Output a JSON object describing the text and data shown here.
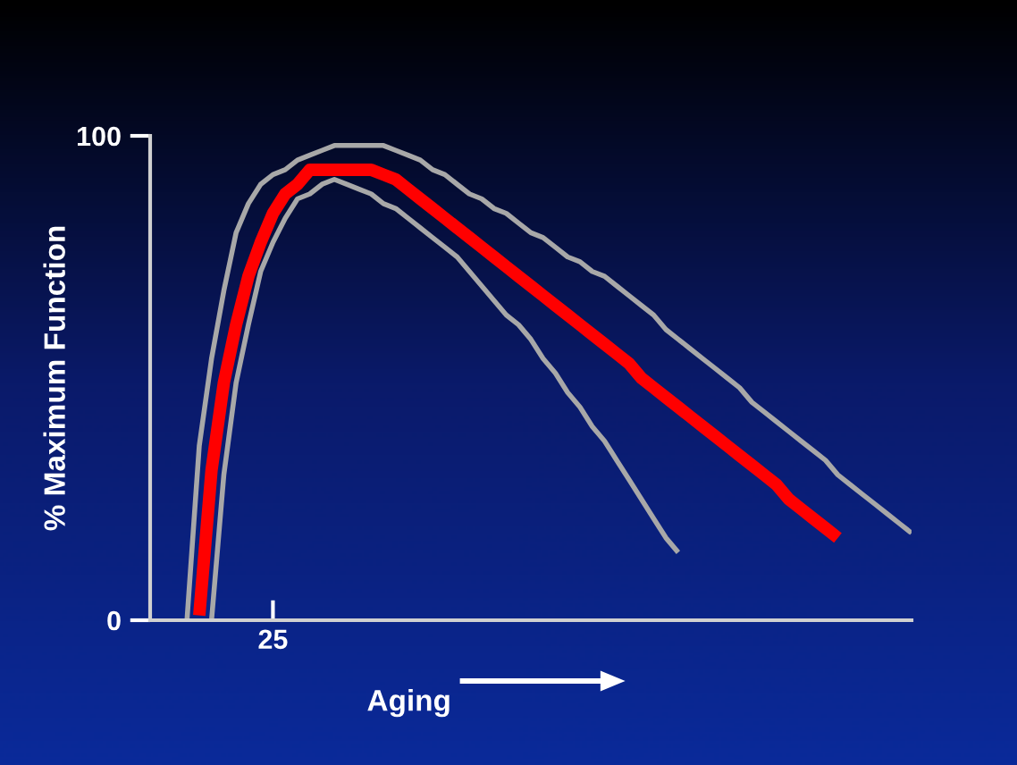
{
  "chart_data": {
    "type": "line",
    "xlabel": "Aging",
    "ylabel": "% Maximum Function",
    "ylim": [
      0,
      100
    ],
    "yticks": [
      0,
      100
    ],
    "grid": false,
    "legend": false,
    "marker": "none",
    "line_style": "solid",
    "categories": [
      null,
      null,
      null,
      null,
      null,
      null,
      null,
      null,
      null,
      null,
      "25",
      null,
      null,
      null,
      null,
      null,
      null,
      null,
      null,
      null,
      null,
      null,
      null,
      null,
      null,
      null,
      null,
      null,
      null,
      null,
      null,
      null,
      null,
      null,
      null,
      null,
      null,
      null,
      null,
      null,
      null,
      null,
      null,
      null,
      null,
      null,
      null,
      null,
      null,
      null,
      null,
      null,
      null,
      null,
      null,
      null,
      null,
      null,
      null,
      null,
      null,
      null,
      null
    ],
    "series": [
      {
        "color": "#a8a8a8",
        "values": [
          null,
          null,
          null,
          0,
          36,
          54,
          68,
          80,
          86,
          90,
          92,
          93,
          95,
          96,
          97,
          98,
          98,
          98,
          98,
          98,
          97,
          96,
          95,
          93,
          92,
          90,
          88,
          87,
          85,
          84,
          82,
          80,
          79,
          77,
          75,
          74,
          72,
          71,
          69,
          67,
          65,
          63,
          60,
          58,
          56,
          54,
          52,
          50,
          48,
          45,
          43,
          41,
          39,
          37,
          35,
          33,
          30,
          28,
          26,
          24,
          22,
          20,
          18
        ]
      },
      {
        "color": "#a8a8a8",
        "values": [
          null,
          null,
          null,
          null,
          null,
          0,
          30,
          49,
          61,
          72,
          78,
          83,
          87,
          88,
          90,
          91,
          90,
          89,
          88,
          86,
          85,
          83,
          81,
          79,
          77,
          75,
          72,
          69,
          66,
          63,
          61,
          58,
          54,
          51,
          47,
          44,
          40,
          37,
          33,
          29,
          25,
          21,
          17,
          14,
          null,
          null,
          null,
          null,
          null,
          null,
          null,
          null,
          null,
          null,
          null,
          null,
          null,
          null,
          null,
          null,
          null,
          null,
          null
        ]
      },
      {
        "color": "#ff0000",
        "values": [
          null,
          null,
          null,
          null,
          1,
          31,
          49,
          61,
          71,
          78,
          84,
          88,
          90,
          93,
          93,
          93,
          93,
          93,
          93,
          92,
          91,
          89,
          87,
          85,
          83,
          81,
          79,
          77,
          75,
          73,
          71,
          69,
          67,
          65,
          63,
          61,
          59,
          57,
          55,
          53,
          50,
          48,
          46,
          44,
          42,
          40,
          38,
          36,
          34,
          32,
          30,
          28,
          25,
          23,
          21,
          19,
          17,
          null,
          null,
          null,
          null,
          null,
          null
        ]
      }
    ]
  }
}
